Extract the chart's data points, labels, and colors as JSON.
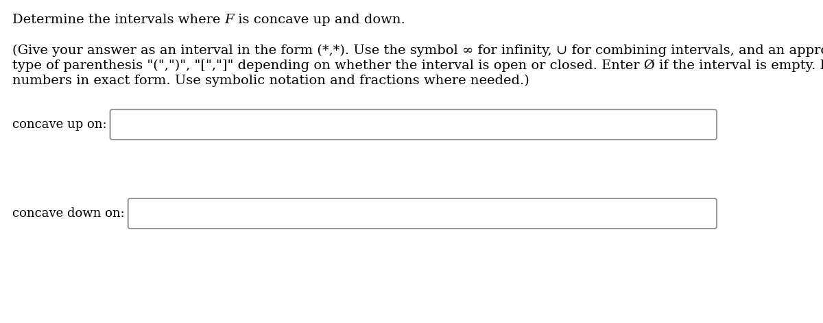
{
  "seg1": "Determine the intervals where ",
  "seg2": "F",
  "seg3": " is concave up and down.",
  "body_lines": [
    "(Give your answer as an interval in the form (*,*). Use the symbol ∞ for infinity, ∪ for combining intervals, and an appropriate",
    "type of parenthesis \"(\",\")\", \"[\",\"]\" depending on whether the interval is open or closed. Enter Ø if the interval is empty. Express",
    "numbers in exact form. Use symbolic notation and fractions where needed.)"
  ],
  "label1": "concave up on:",
  "label2": "concave down on:",
  "bg_color": "#ffffff",
  "text_color": "#000000",
  "box_face_color": "#ffffff",
  "box_edge_color": "#999999",
  "font_size": 14.0,
  "label_font_size": 13.0
}
